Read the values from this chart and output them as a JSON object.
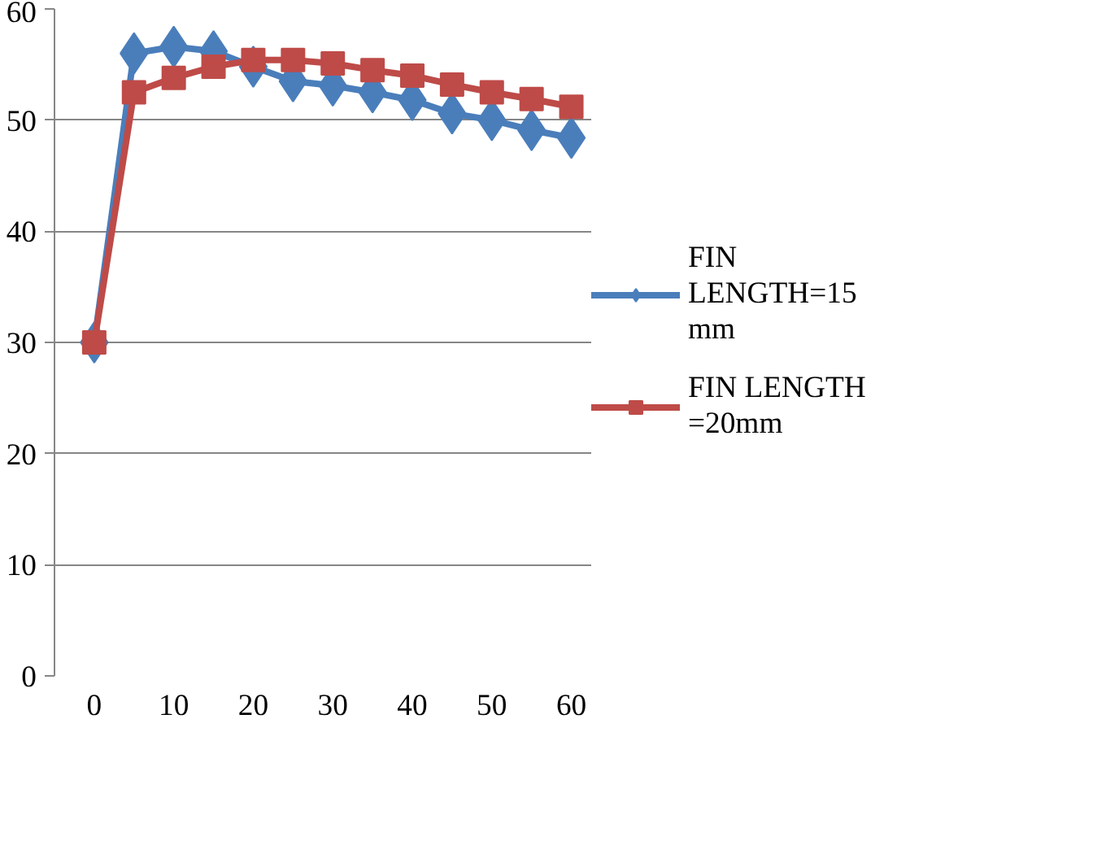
{
  "chart_data": {
    "type": "line",
    "x": [
      0,
      5,
      10,
      15,
      20,
      25,
      30,
      35,
      40,
      45,
      50,
      55,
      60
    ],
    "series": [
      {
        "name": "FIN LENGTH=15 mm",
        "color": "#4a7ebb",
        "marker": "diamond",
        "values": [
          30,
          56.0,
          56.6,
          56.2,
          54.8,
          53.5,
          53.1,
          52.5,
          51.8,
          50.6,
          50.0,
          49.1,
          48.4
        ]
      },
      {
        "name": "FIN LENGTH =20mm",
        "color": "#be4b48",
        "marker": "square",
        "values": [
          30,
          52.5,
          53.8,
          54.8,
          55.4,
          55.4,
          55.1,
          54.5,
          54.0,
          53.2,
          52.5,
          51.9,
          51.2
        ]
      }
    ],
    "xlim": [
      -5,
      62.5
    ],
    "xticks": [
      0,
      10,
      20,
      30,
      40,
      50,
      60
    ],
    "ylim": [
      0,
      60
    ],
    "yticks": [
      0,
      10,
      20,
      30,
      40,
      50,
      60
    ],
    "grid": "y",
    "legend": "right",
    "line_style": "solid"
  }
}
